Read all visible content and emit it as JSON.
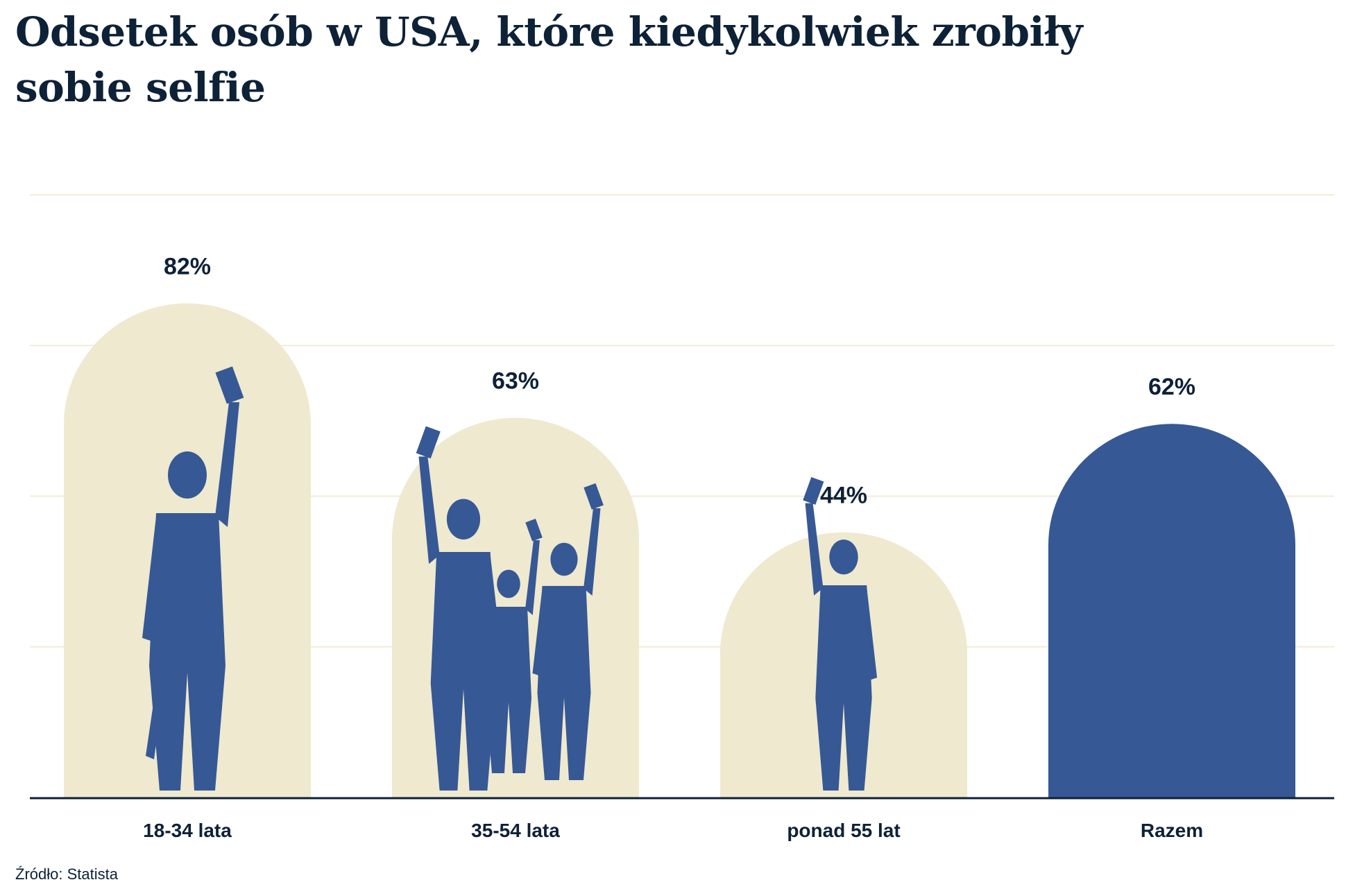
{
  "title": "Odsetek osób w USA, które kiedykolwiek zrobiły sobie selfie",
  "source": "Źródło: Statista",
  "colors": {
    "bar": "#efe9cf",
    "highlight": "#365895",
    "silhouette": "#365895",
    "grid": "#f3ecd6",
    "axis": "#0d2137",
    "text": "#0d2137"
  },
  "chart_data": {
    "type": "bar",
    "title": "Odsetek osób w USA, które kiedykolwiek zrobiły sobie selfie",
    "categories": [
      "18-34 lata",
      "35-54 lata",
      "ponad 55 lat",
      "Razem"
    ],
    "values": [
      82,
      63,
      44,
      62
    ],
    "data_labels": [
      "82%",
      "63%",
      "44%",
      "62%"
    ],
    "highlighted": [
      false,
      false,
      false,
      true
    ],
    "silhouettes": [
      "young-person-selfie-skateboard-icon",
      "family-selfie-icon",
      "senior-selfie-icon",
      null
    ],
    "xlabel": "",
    "ylabel": "",
    "ylim": [
      0,
      100
    ],
    "grid": true,
    "bar_shape": "arch",
    "legend": "none"
  }
}
